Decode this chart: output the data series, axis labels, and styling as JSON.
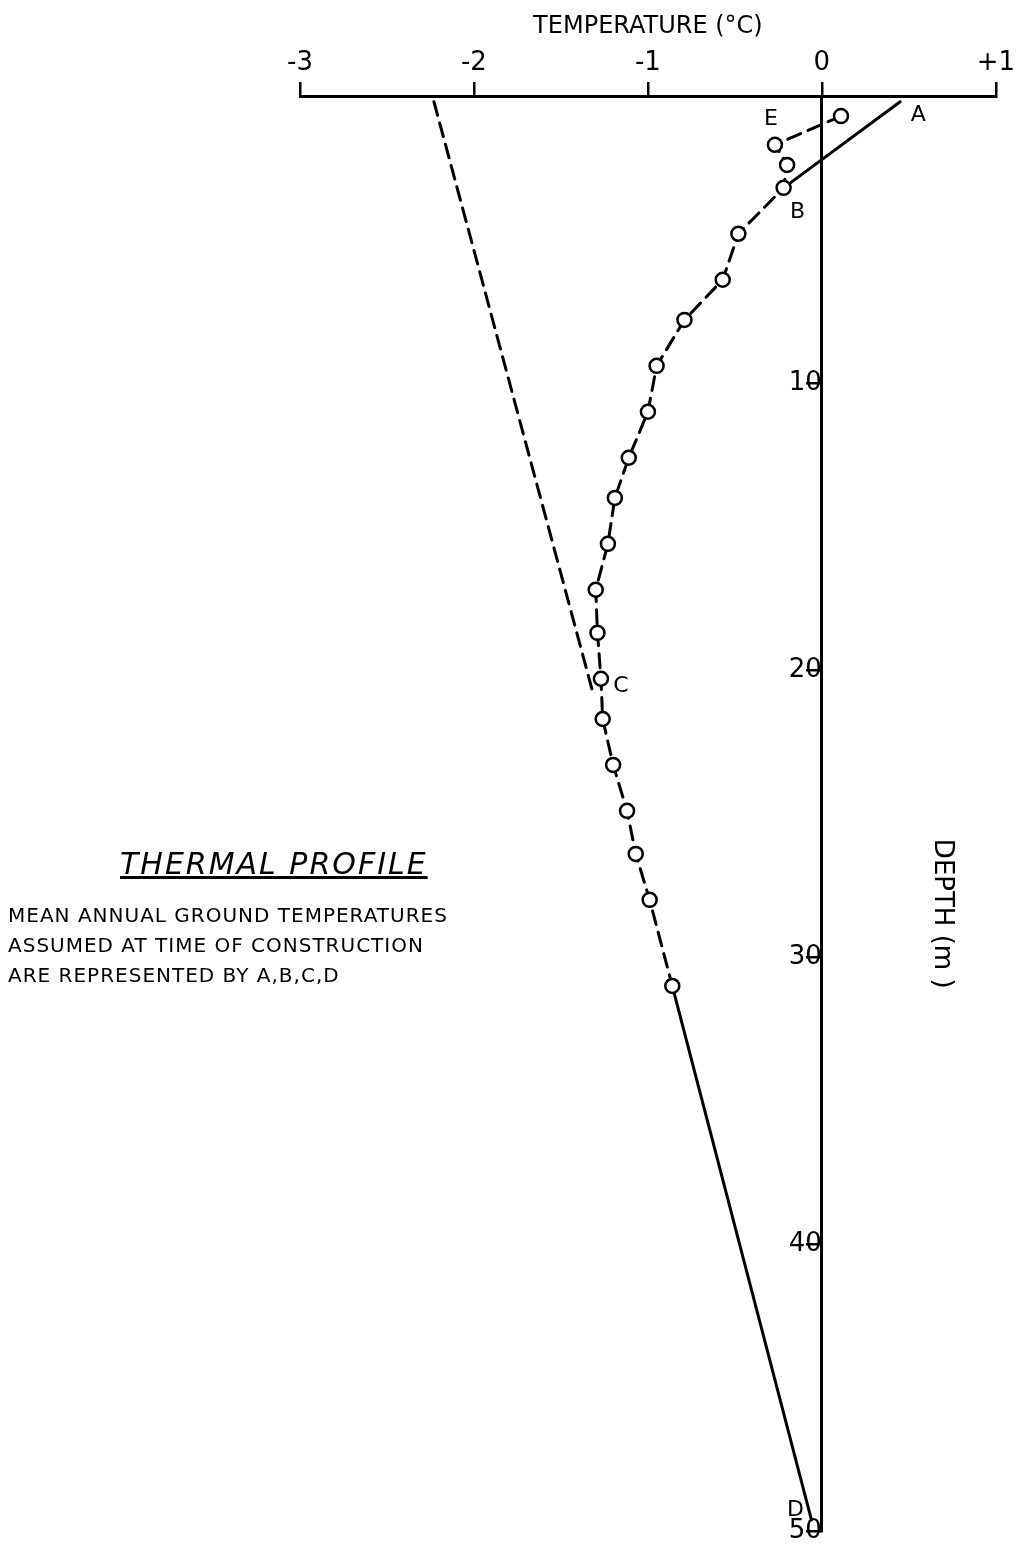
{
  "chart_data": {
    "type": "line",
    "title": "THERMAL PROFILE",
    "xlabel": "TEMPERATURE (°C)",
    "ylabel": "DEPTH (m )",
    "xlim": [
      -3,
      1
    ],
    "xticks": [
      -3,
      -2,
      -1,
      0,
      {
        "value": 1,
        "label": "+1"
      }
    ],
    "ylim": [
      50,
      0
    ],
    "yticks": [
      10,
      20,
      30,
      40,
      50
    ],
    "grid": false,
    "legend": false,
    "series": [
      {
        "color": "#000000",
        "marker": "circle",
        "line_style": "dashed",
        "x": [
          0.11,
          -0.27,
          -0.2,
          -0.22,
          -0.48,
          -0.57,
          -0.79,
          -0.95,
          -1.0,
          -1.11,
          -1.19,
          -1.23,
          -1.3,
          -1.29,
          -1.27,
          -1.26,
          -1.2,
          -1.12,
          -1.07,
          -0.99,
          -0.86
        ],
        "values": [
          0.7,
          1.7,
          2.4,
          3.2,
          4.8,
          6.4,
          7.8,
          9.4,
          11.0,
          12.6,
          14.0,
          15.6,
          17.2,
          18.7,
          20.3,
          21.7,
          23.3,
          24.9,
          26.4,
          28.0,
          31.0
        ]
      },
      {
        "color": "#000000",
        "marker": "none",
        "line_style": "solid",
        "x": [
          0.45,
          -0.22
        ],
        "values": [
          0.2,
          3.2
        ]
      },
      {
        "color": "#000000",
        "marker": "none",
        "line_style": "solid",
        "x": [
          -0.86,
          -0.06
        ],
        "values": [
          31.0,
          49.6
        ]
      },
      {
        "color": "#000000",
        "marker": "none",
        "line_style": "dashed",
        "x": [
          -2.23,
          -1.32
        ],
        "values": [
          0.2,
          20.7
        ]
      }
    ],
    "annotations": [
      {
        "text": "A",
        "x": 0.45,
        "y": 0.2
      },
      {
        "text": "E",
        "x": -0.27,
        "y": 1.7
      },
      {
        "text": "B",
        "x": -0.22,
        "y": 3.2
      },
      {
        "text": "C",
        "x": -1.27,
        "y": 20.3
      },
      {
        "text": "D",
        "x": -0.06,
        "y": 49.6
      },
      "MEAN ANNUAL GROUND TEMPERATURES\nASSUMED AT TIME OF CONSTRUCTION\nARE REPRESENTED BY A,B,C,D"
    ]
  }
}
